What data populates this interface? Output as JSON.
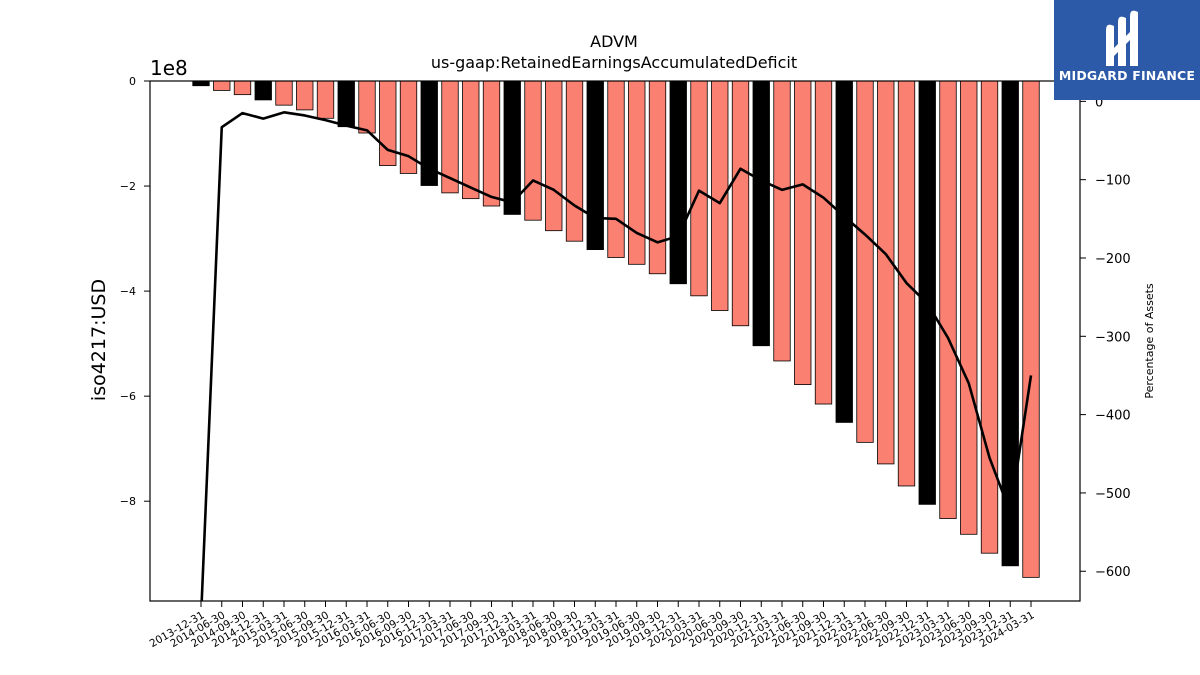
{
  "chart_data": {
    "type": "bar+line",
    "title": "ADVM",
    "subtitle": "us-gaap:RetainedEarningsAccumulatedDeficit",
    "ylabel_left": "iso4217:USD",
    "ylabel_right": "Percentage of Assets",
    "offset_label": "1e8",
    "ylim_left": [
      -9.9,
      0
    ],
    "yticks_left": [
      0,
      -2,
      -4,
      -6,
      -8
    ],
    "yticks_left_labels": [
      "0",
      "−2",
      "−4",
      "−6",
      "−8"
    ],
    "ylim_right": [
      -638,
      26
    ],
    "yticks_right": [
      0,
      -100,
      -200,
      -300,
      -400,
      -500,
      -600
    ],
    "yticks_right_labels": [
      "0",
      "−100",
      "−200",
      "−300",
      "−400",
      "−500",
      "−600"
    ],
    "grid": false,
    "colors": {
      "annual_bar": "#000000",
      "quarterly_bar": "#fa8072",
      "line": "#000000"
    },
    "categories": [
      "2013-12-31",
      "2014-06-30",
      "2014-09-30",
      "2014-12-31",
      "2015-03-31",
      "2015-06-30",
      "2015-09-30",
      "2015-12-31",
      "2016-03-31",
      "2016-06-30",
      "2016-09-30",
      "2016-12-31",
      "2017-03-31",
      "2017-06-30",
      "2017-09-30",
      "2017-12-31",
      "2018-03-31",
      "2018-06-30",
      "2018-09-30",
      "2018-12-31",
      "2019-03-31",
      "2019-06-30",
      "2019-09-30",
      "2019-12-31",
      "2020-03-31",
      "2020-06-30",
      "2020-09-30",
      "2020-12-31",
      "2021-03-31",
      "2021-06-30",
      "2021-09-30",
      "2021-12-31",
      "2022-03-31",
      "2022-06-30",
      "2022-09-30",
      "2022-12-31",
      "2023-03-31",
      "2023-06-30",
      "2023-09-30",
      "2023-12-31",
      "2024-03-31"
    ],
    "bar_types": [
      "annual",
      "quarterly",
      "quarterly",
      "annual",
      "quarterly",
      "quarterly",
      "quarterly",
      "annual",
      "quarterly",
      "quarterly",
      "quarterly",
      "annual",
      "quarterly",
      "quarterly",
      "quarterly",
      "annual",
      "quarterly",
      "quarterly",
      "quarterly",
      "annual",
      "quarterly",
      "quarterly",
      "quarterly",
      "annual",
      "quarterly",
      "quarterly",
      "quarterly",
      "annual",
      "quarterly",
      "quarterly",
      "quarterly",
      "annual",
      "quarterly",
      "quarterly",
      "quarterly",
      "annual",
      "quarterly",
      "quarterly",
      "quarterly",
      "annual",
      "quarterly"
    ],
    "series": [
      {
        "type": "bar",
        "values": [
          -0.09,
          -0.18,
          -0.26,
          -0.36,
          -0.46,
          -0.55,
          -0.71,
          -0.87,
          -0.99,
          -1.61,
          -1.76,
          -1.99,
          -2.13,
          -2.24,
          -2.38,
          -2.54,
          -2.65,
          -2.85,
          -3.05,
          -3.21,
          -3.36,
          -3.49,
          -3.67,
          -3.86,
          -4.09,
          -4.37,
          -4.66,
          -5.04,
          -5.33,
          -5.78,
          -6.15,
          -6.5,
          -6.88,
          -7.29,
          -7.71,
          -8.06,
          -8.33,
          -8.63,
          -8.99,
          -9.23,
          -9.45
        ]
      },
      {
        "type": "line",
        "values": [
          -660,
          -33,
          -15,
          -22,
          -14,
          -18,
          -24,
          -31,
          -37,
          -62,
          -70,
          -86,
          -98,
          -110,
          -122,
          -129,
          -101,
          -113,
          -133,
          -149,
          -150,
          -168,
          -180,
          -172,
          -114,
          -130,
          -86,
          -101,
          -113,
          -106,
          -123,
          -147,
          -170,
          -195,
          -232,
          -258,
          -302,
          -360,
          -455,
          -525,
          -350
        ]
      }
    ]
  }
}
